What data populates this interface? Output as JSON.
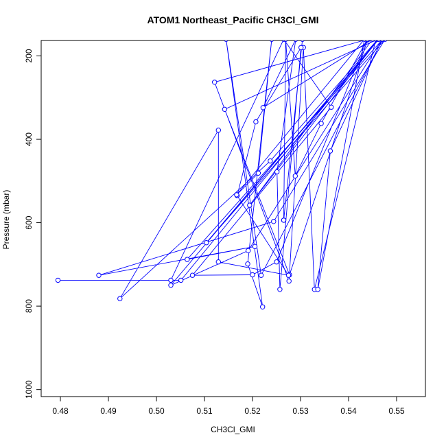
{
  "chart_data": {
    "type": "line",
    "title": "ATOM1 Northeast_Pacific CH3Cl_GMI",
    "xlabel": "CH3Cl_GMI",
    "ylabel": "Pressure (mbar)",
    "xlim": [
      0.476,
      0.556
    ],
    "ylim": [
      1017,
      163
    ],
    "y_reversed": true,
    "grid": false,
    "x_ticks": [
      0.48,
      0.49,
      0.5,
      0.51,
      0.52,
      0.53,
      0.54,
      0.55
    ],
    "x_tick_labels": [
      "0.48",
      "0.49",
      "0.50",
      "0.51",
      "0.52",
      "0.53",
      "0.54",
      "0.55"
    ],
    "y_ticks": [
      200,
      400,
      600,
      800,
      1000
    ],
    "y_tick_labels": [
      "200",
      "400",
      "600",
      "800",
      "1000"
    ],
    "line_color": "#0000ff",
    "marker": "open-circle",
    "series": [
      {
        "points": [
          [
            0.5457,
            160
          ],
          [
            0.5329,
            760
          ],
          [
            0.5306,
            180
          ],
          [
            0.5276,
            740
          ],
          [
            0.5121,
            263
          ],
          [
            0.544,
            160
          ],
          [
            0.5277,
            725
          ],
          [
            0.5142,
            328
          ],
          [
            0.5461,
            160
          ],
          [
            0.5237,
            452
          ],
          [
            0.4924,
            782
          ],
          [
            0.5129,
            378
          ],
          [
            0.5129,
            694
          ],
          [
            0.5275,
            726
          ],
          [
            0.5168,
            535
          ],
          [
            0.5207,
            358
          ],
          [
            0.5301,
            180
          ],
          [
            0.5257,
            760
          ],
          [
            0.5251,
            478
          ],
          [
            0.529,
            160
          ],
          [
            0.5222,
            324
          ],
          [
            0.545,
            160
          ],
          [
            0.5194,
            558
          ],
          [
            0.5462,
            160
          ],
          [
            0.5104,
            648
          ],
          [
            0.5476,
            160
          ],
          [
            0.5244,
            597
          ],
          [
            0.488,
            726
          ],
          [
            0.5205,
            657
          ],
          [
            0.5064,
            688
          ],
          [
            0.5471,
            160
          ],
          [
            0.5218,
            726
          ],
          [
            0.5145,
            160
          ],
          [
            0.5221,
            802
          ],
          [
            0.519,
            699
          ],
          [
            0.524,
            160
          ],
          [
            0.5212,
            481
          ],
          [
            0.5167,
            533
          ],
          [
            0.5433,
            160
          ],
          [
            0.5336,
            760
          ],
          [
            0.5362,
            428
          ],
          [
            0.547,
            160
          ],
          [
            0.5191,
            667
          ],
          [
            0.503,
            750
          ],
          [
            0.5463,
            160
          ],
          [
            0.5051,
            738
          ],
          [
            0.4795,
            738
          ],
          [
            0.503,
            738
          ],
          [
            0.5265,
            160
          ],
          [
            0.5364,
            323
          ],
          [
            0.5075,
            726
          ],
          [
            0.52,
            725
          ],
          [
            0.525,
            694
          ],
          [
            0.5439,
            160
          ],
          [
            0.5343,
            362
          ],
          [
            0.5289,
            488
          ],
          [
            0.5269,
            160
          ],
          [
            0.5265,
            594
          ],
          [
            0.5304,
            160
          ],
          [
            0.5265,
            594
          ]
        ]
      }
    ]
  }
}
